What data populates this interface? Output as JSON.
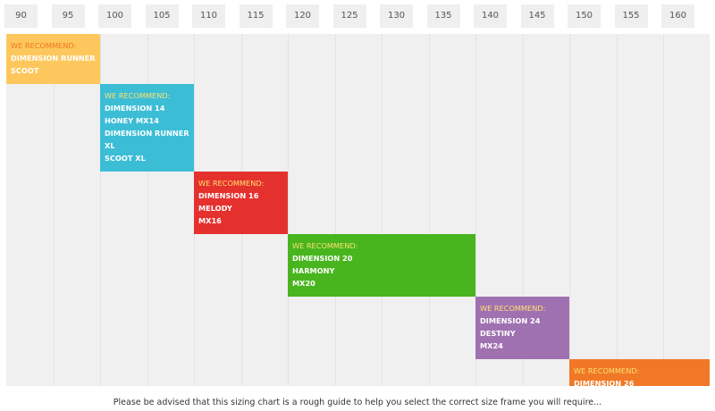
{
  "chart_data": {
    "type": "table",
    "x_ticks": [
      90,
      95,
      100,
      105,
      110,
      115,
      120,
      125,
      130,
      135,
      140,
      145,
      150,
      155,
      160
    ],
    "xlim": [
      90,
      165
    ],
    "ranges": [
      {
        "from": 90,
        "to": 100,
        "color": "#fec75d",
        "heading_color": "#f07820",
        "heading": "WE RECOMMEND:",
        "items": [
          "DIMENSION RUNNER",
          "SCOOT"
        ]
      },
      {
        "from": 100,
        "to": 110,
        "color": "#3cbdd6",
        "heading_color": "#fde26e",
        "heading": "WE RECOMMEND:",
        "items": [
          "DIMENSION 14",
          "HONEY MX14",
          "DIMENSION RUNNER",
          "XL",
          "SCOOT XL"
        ]
      },
      {
        "from": 110,
        "to": 120,
        "color": "#e5312e",
        "heading_color": "#fde26e",
        "heading": "WE RECOMMEND:",
        "items": [
          "DIMENSION 16",
          "MELODY",
          "MX16"
        ]
      },
      {
        "from": 120,
        "to": 140,
        "color": "#48b51e",
        "heading_color": "#fde26e",
        "heading": "WE RECOMMEND:",
        "items": [
          "DIMENSION 20",
          "HARMONY",
          "MX20"
        ]
      },
      {
        "from": 140,
        "to": 150,
        "color": "#a071b1",
        "heading_color": "#fde26e",
        "heading": "WE RECOMMEND:",
        "items": [
          "DIMENSION 24",
          "DESTINY",
          "MX24"
        ]
      },
      {
        "from": 150,
        "to": 165,
        "color": "#f07826",
        "heading_color": "#fde26e",
        "heading": "WE RECOMMEND:",
        "items": [
          "DIMENSION 26"
        ]
      }
    ]
  },
  "footer_text": "Please be advised that this sizing chart is a rough guide to help you select the correct size frame you will require..."
}
